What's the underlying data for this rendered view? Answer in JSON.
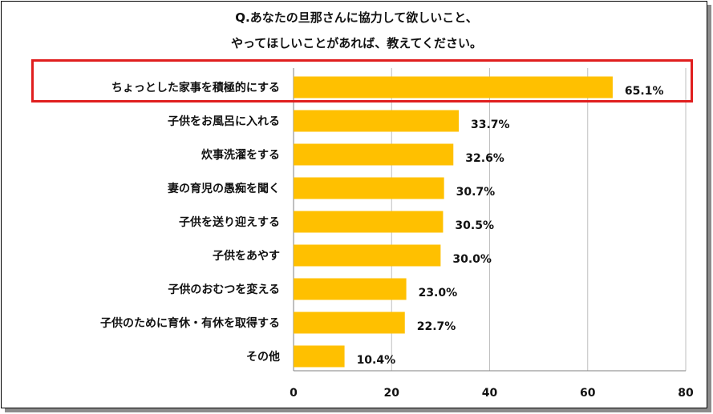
{
  "title_line1": "Q.あなたの旦那さんに協力して欲しいこと、",
  "title_line2": "やってほしいことがあれば、教えてください。",
  "colors": {
    "bar": "#FFC000",
    "highlight": "#E01E1E",
    "grid": "#BFBFBF"
  },
  "chart_data": {
    "type": "bar",
    "orientation": "horizontal",
    "categories": [
      "ちょっとした家事を積極的にする",
      "子供をお風呂に入れる",
      "炊事洗濯をする",
      "妻の育児の愚痴を聞く",
      "子供を送り迎えする",
      "子供をあやす",
      "子供のおむつを変える",
      "子供のために育休・有休を取得する",
      "その他"
    ],
    "values": [
      65.1,
      33.7,
      32.6,
      30.7,
      30.5,
      30.0,
      23.0,
      22.7,
      10.4
    ],
    "data_labels": [
      "65.1%",
      "33.7%",
      "32.6%",
      "30.7%",
      "30.5%",
      "30.0%",
      "23.0%",
      "22.7%",
      "10.4%"
    ],
    "xlim": [
      0,
      80
    ],
    "xticks": [
      "0",
      "20",
      "40",
      "60",
      "80"
    ],
    "grid": true,
    "highlighted_category": "ちょっとした家事を積極的にする"
  }
}
